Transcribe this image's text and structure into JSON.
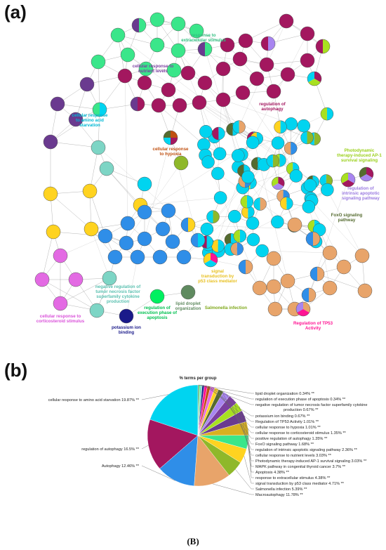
{
  "panel_a_label": "(a)",
  "panel_b_label": "(b)",
  "caption": "(B)",
  "colors": {
    "autophagy": "#a3175f",
    "amino": "#00d4f0",
    "macro": "#e8a46a",
    "salmonella": "#8fb82a",
    "p53": "#2f8ee8",
    "extracell": "#3ae68a",
    "mapk": "#6a3a8f",
    "photodyn": "#a8e020",
    "intrinsic": "#a885f0",
    "foxo": "#556b2f",
    "poslipid": "#ffd320",
    "cortico": "#e36ae3",
    "hypoxia": "#c05010",
    "tp53reg": "#ff1493",
    "potassium": "#1a1a8a",
    "negtnf": "#7dd5c5",
    "apoptosis": "#00f060",
    "lipid": "#5f8a5f"
  },
  "network_labels": [
    {
      "text": "response to extracellular stimulus",
      "color": "#2fbf7f"
    },
    {
      "text": "cellular response to nutrient levels",
      "color": "#7b3fa0"
    },
    {
      "text": "cellular response to amino acid starvation",
      "color": "#00b8d4"
    },
    {
      "text": "regulation of autophagy",
      "color": "#a3175f"
    },
    {
      "text": "cellular response to hypoxia",
      "color": "#c05010"
    },
    {
      "text": "Photodynamic therapy-induced AP-1 survival signaling",
      "color": "#9ad01a"
    },
    {
      "text": "regulation of intrinsic apoptotic signaling pathway",
      "color": "#9a7ae0"
    },
    {
      "text": "FoxO signaling pathway",
      "color": "#556b2f"
    },
    {
      "text": "cellular response to corticosteroid stimulus",
      "color": "#d94fd9"
    },
    {
      "text": "negative regulation of tumor necrosis factor superfamily cytokine production",
      "color": "#5ac0b0"
    },
    {
      "text": "potassium ion binding",
      "color": "#1a1a8a"
    },
    {
      "text": "regulation of execution phase of apoptosis",
      "color": "#00c050"
    },
    {
      "text": "lipid droplet organization",
      "color": "#5f8a5f"
    },
    {
      "text": "Salmonella infection",
      "color": "#7fa81a"
    },
    {
      "text": "signal transduction by p53 class mediator",
      "color": "#e8c020"
    },
    {
      "text": "Regulation of TP53 Activity",
      "color": "#ff1493"
    }
  ],
  "chart_data": {
    "type": "pie",
    "title": "% terms per group",
    "slices": [
      {
        "label": "cellular response to amino acid starvation",
        "value": 19.87,
        "display": "cellular response to amino acid starvation 19.87% **"
      },
      {
        "label": "regulation of autophagy",
        "value": 16.5,
        "display": "regulation of autophagy 16.5% **"
      },
      {
        "label": "Autophagy",
        "value": 12.46,
        "display": "Autophagy 12.46% **"
      },
      {
        "label": "Macroautophagy",
        "value": 11.78,
        "display": "Macroautophagy 11.78% **"
      },
      {
        "label": "Salmonella infection",
        "value": 5.39,
        "display": "Salmonella infection 5.39% **"
      },
      {
        "label": "signal transduction by p53 class mediator",
        "value": 4.71,
        "display": "signal transduction by p53 class mediator 4.71% **"
      },
      {
        "label": "response to extracellular stimulus",
        "value": 4.38,
        "display": "response to extracellular stimulus 4.38% **"
      },
      {
        "label": "Apoptosis",
        "value": 4.38,
        "display": "Apoptosis 4.38% **"
      },
      {
        "label": "MAPK pathway in congenital thyroid cancer",
        "value": 3.7,
        "display": "MAPK pathway in congenital thyroid cancer 3.7% **"
      },
      {
        "label": "Photodynamic therapy-induced AP-1 survival signaling",
        "value": 3.03,
        "display": "Photodynamic therapy-induced AP-1 survival signaling 3.03% **"
      },
      {
        "label": "cellular response to nutrient levels",
        "value": 3.03,
        "display": "cellular response to nutrient levels 3.03% **"
      },
      {
        "label": "regulation of intrinsic apoptotic signaling pathway",
        "value": 2.36,
        "display": "regulation of intrinsic apoptotic signaling pathway 2.36% **"
      },
      {
        "label": "FoxO signaling pathway",
        "value": 1.68,
        "display": "FoxO signaling pathway 1.68% **"
      },
      {
        "label": "positive regulation of autophagy",
        "value": 1.35,
        "display": "positive regulation of autophagy 1.35% **"
      },
      {
        "label": "cellular response to corticosteroid stimulus",
        "value": 1.35,
        "display": "cellular response to corticosteroid stimulus 1.35% **"
      },
      {
        "label": "cellular response to hypoxia",
        "value": 1.01,
        "display": "cellular response to hypoxia 1.01% **"
      },
      {
        "label": "Regulation of TP53 Activity",
        "value": 1.01,
        "display": "Regulation of TP53 Activity 1.01% **"
      },
      {
        "label": "potassium ion binding",
        "value": 0.67,
        "display": "potassium ion binding 0.67% **"
      },
      {
        "label": "negative regulation of tumor necrosis factor superfamily cytokine production",
        "value": 0.67,
        "display": "negative regulation of tumor necrosis factor superfamily cytokine production 0.67% **"
      },
      {
        "label": "regulation of execution phase of apoptosis",
        "value": 0.34,
        "display": "regulation of execution phase of apoptosis 0.34% **"
      },
      {
        "label": "lipid droplet organization",
        "value": 0.34,
        "display": "lipid droplet organization 0.34% **"
      }
    ],
    "slice_colors": [
      "#00d4f0",
      "#a3175f",
      "#2f8ee8",
      "#e8a46a",
      "#8fb82a",
      "#ffd320",
      "#3ae68a",
      "#d8b020",
      "#6a3a8f",
      "#a8e020",
      "#7b3fa0",
      "#a885f0",
      "#556b2f",
      "#ffd320",
      "#e36ae3",
      "#c05010",
      "#ff1493",
      "#1a1a8a",
      "#7dd5c5",
      "#00f060",
      "#5f8a5f"
    ]
  }
}
